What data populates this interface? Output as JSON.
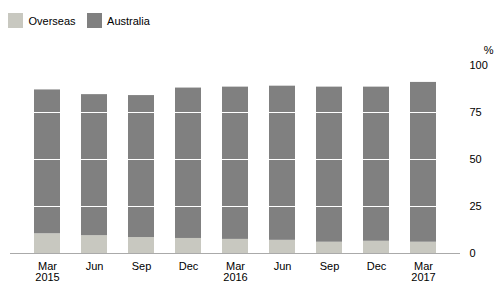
{
  "chart_data": {
    "type": "bar",
    "stacked": true,
    "categories": [
      "Mar\n2015",
      "Jun",
      "Sep",
      "Dec",
      "Mar\n2016",
      "Jun",
      "Sep",
      "Dec",
      "Mar\n2017"
    ],
    "series": [
      {
        "name": "Overseas",
        "color": "#c8c8c0",
        "values": [
          10.5,
          9.5,
          8.5,
          8.0,
          7.5,
          7.0,
          6.0,
          6.5,
          6.0
        ]
      },
      {
        "name": "Australia",
        "color": "#808080",
        "values": [
          76.5,
          75.0,
          75.5,
          80.0,
          81.0,
          82.0,
          82.5,
          82.0,
          85.0
        ]
      }
    ],
    "ylabel": "%",
    "ylim": [
      0,
      100
    ],
    "yticks": [
      0,
      25,
      50,
      75,
      100
    ],
    "grid": true,
    "legend": "upper left"
  }
}
